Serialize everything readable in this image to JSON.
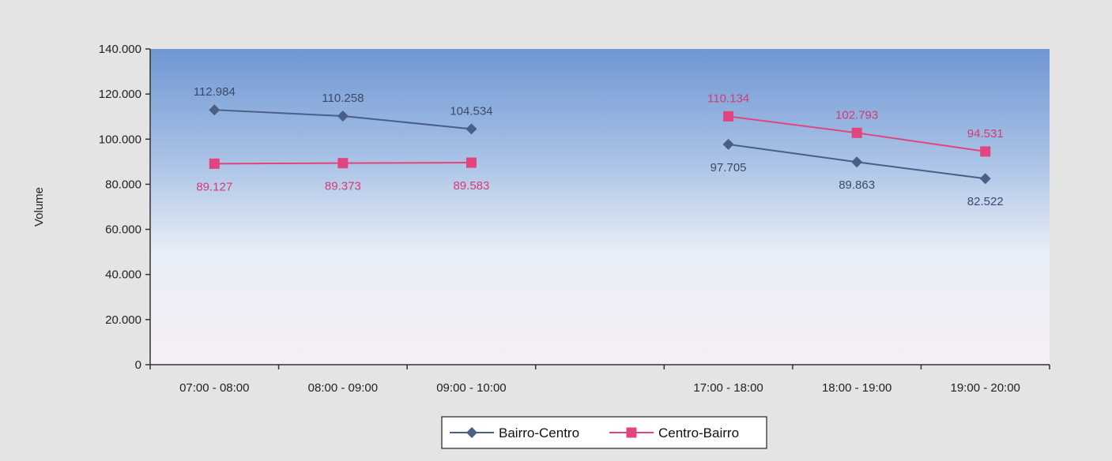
{
  "chart_data": {
    "type": "line",
    "title": "",
    "xlabel": "",
    "ylabel": "Volume",
    "categories": [
      "07:00 - 08:00",
      "08:00 - 09:00",
      "09:00 - 10:00",
      "",
      "17:00 - 18:00",
      "18:00 - 19:00",
      "19:00 - 20:00"
    ],
    "ylim": [
      0,
      140000
    ],
    "yticks": [
      0,
      20000,
      40000,
      60000,
      80000,
      100000,
      120000,
      140000
    ],
    "ytick_labels": [
      "0",
      "20.000",
      "40.000",
      "60.000",
      "80.000",
      "100.000",
      "120.000",
      "140.000"
    ],
    "grid": false,
    "legend": "bottom",
    "series": [
      {
        "name": "Bairro-Centro",
        "color": "#4a5f85",
        "marker": "diamond",
        "values": [
          112984,
          110258,
          104534,
          null,
          97705,
          89863,
          82522
        ],
        "labels": [
          "112.984",
          "110.258",
          "104.534",
          "",
          "97.705",
          "89.863",
          "82.522"
        ]
      },
      {
        "name": "Centro-Bairro",
        "color": "#e0457f",
        "marker": "square",
        "values": [
          89127,
          89373,
          89583,
          null,
          110134,
          102793,
          94531
        ],
        "labels": [
          "89.127",
          "89.373",
          "89.583",
          "",
          "110.134",
          "102.793",
          "94.531"
        ]
      }
    ]
  }
}
